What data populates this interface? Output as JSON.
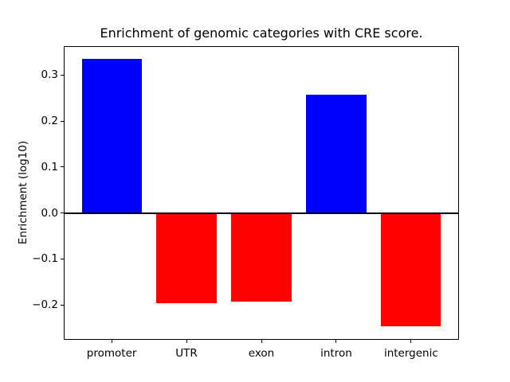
{
  "chart_data": {
    "type": "bar",
    "title": "Enrichment of genomic categories with CRE score.",
    "xlabel": "",
    "ylabel": "Enrichment (log10)",
    "categories": [
      "promoter",
      "UTR",
      "exon",
      "intron",
      "intergenic"
    ],
    "values": [
      0.335,
      -0.196,
      -0.193,
      0.257,
      -0.247
    ],
    "bar_colors": [
      "#0000ff",
      "#ff0000",
      "#ff0000",
      "#0000ff",
      "#ff0000"
    ],
    "positive_color": "#0000ff",
    "negative_color": "#ff0000",
    "yticks": [
      0.3,
      0.2,
      0.1,
      0.0,
      -0.1,
      -0.2
    ],
    "ytick_labels": [
      "0.3",
      "0.2",
      "0.1",
      "0.0",
      "−0.1",
      "−0.2"
    ],
    "ylim": [
      -0.276,
      0.363
    ],
    "bar_width_fraction": 0.8,
    "grid": false,
    "legend": null,
    "zero_line": true,
    "axis_color": "#000000",
    "background_color": "#ffffff"
  }
}
